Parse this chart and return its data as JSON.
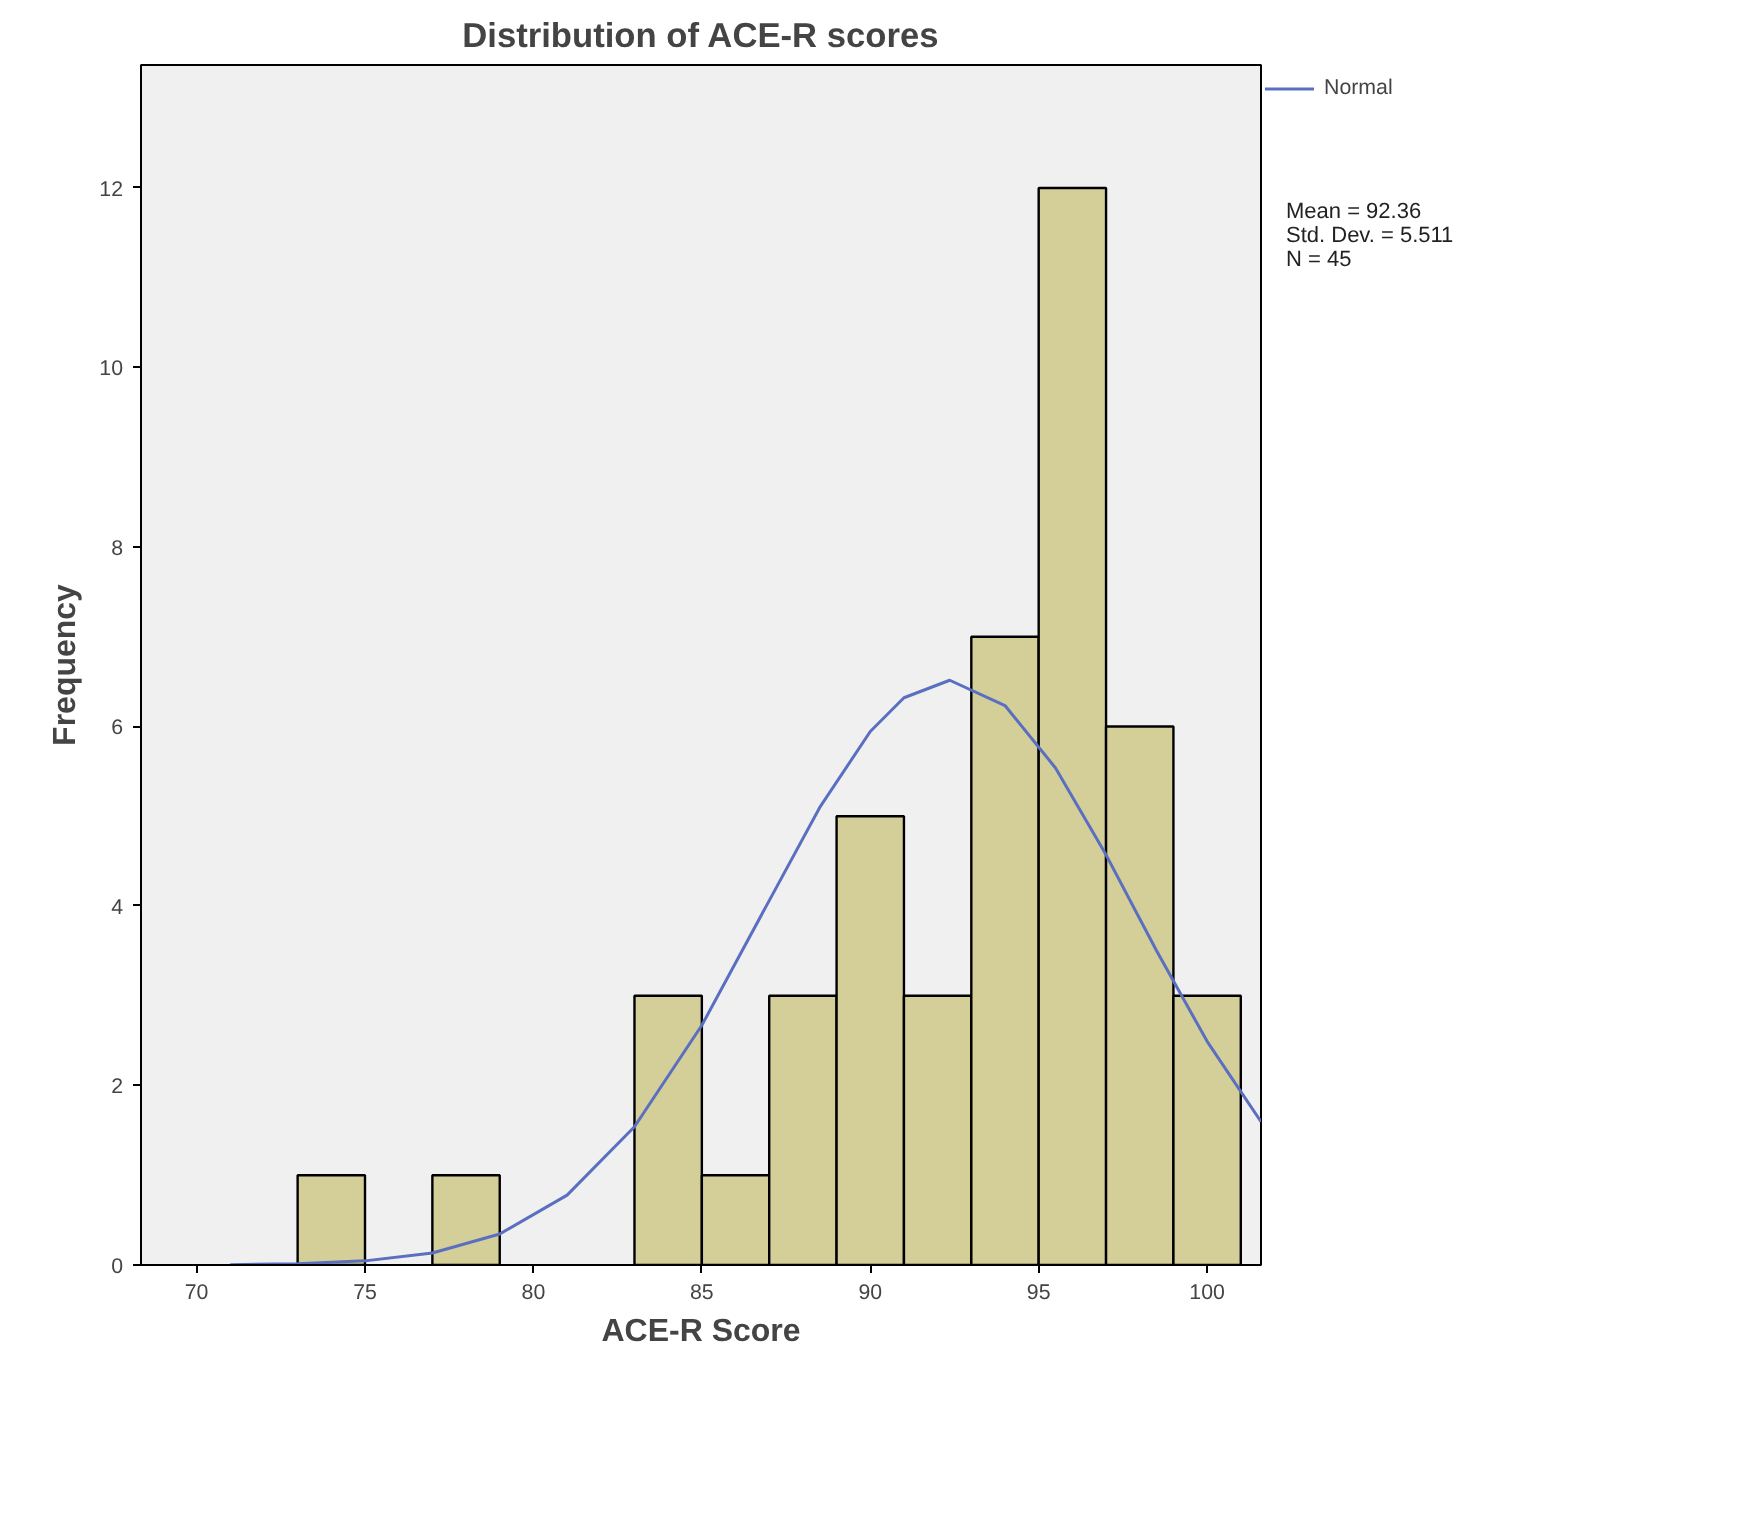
{
  "chart_data": {
    "type": "histogram",
    "title": "Distribution of ACE-R scores",
    "xlabel": "ACE-R Score",
    "ylabel": "Frequency",
    "bins": [
      73,
      75,
      77,
      79,
      81,
      83,
      85,
      87,
      89,
      91,
      93,
      95,
      97,
      99,
      101
    ],
    "values": [
      1,
      0,
      1,
      0,
      0,
      3,
      1,
      3,
      5,
      3,
      7,
      12,
      6,
      3
    ],
    "color": "#d4cf98",
    "series": [
      {
        "type": "line",
        "name": "Normal",
        "color": "#5a6fc0",
        "x": [
          71,
          73,
          75,
          77,
          79,
          81,
          83,
          85,
          87,
          88.5,
          90,
          91,
          92.36,
          94,
          95.5,
          97,
          98.5,
          100,
          101.6
        ],
        "values": [
          0.004,
          0.014,
          0.046,
          0.134,
          0.345,
          0.779,
          1.54,
          2.671,
          4.06,
          5.098,
          5.944,
          6.32,
          6.515,
          6.233,
          5.538,
          4.57,
          3.502,
          2.492,
          1.597
        ]
      }
    ],
    "xlim": [
      68.35,
      101.6
    ],
    "ylim": [
      0,
      13.37
    ],
    "xticks": [
      70,
      75,
      80,
      85,
      90,
      95,
      100
    ],
    "yticks": [
      0,
      2,
      4,
      6,
      8,
      10,
      12
    ],
    "grid": false,
    "legend": "top right",
    "annotations": [
      "Mean = 92.36",
      "Std. Dev. = 5.511",
      "N = 45"
    ]
  }
}
